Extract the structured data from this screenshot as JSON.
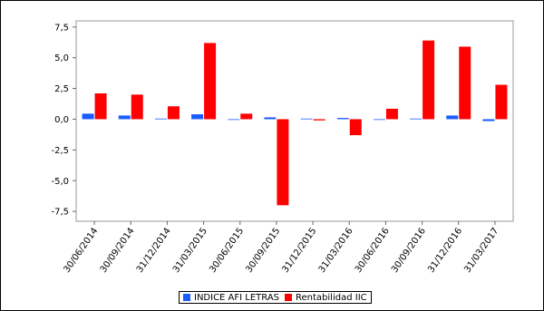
{
  "chart_data": {
    "type": "bar",
    "categories": [
      "30/06/2014",
      "30/09/2014",
      "31/12/2014",
      "31/03/2015",
      "30/06/2015",
      "30/09/2015",
      "31/12/2015",
      "31/03/2016",
      "30/06/2016",
      "30/09/2016",
      "31/12/2016",
      "31/03/2017"
    ],
    "series": [
      {
        "name": "INDICE AFI LETRAS",
        "color": "#1a5cff",
        "values": [
          0.45,
          0.3,
          0.05,
          0.4,
          -0.05,
          0.15,
          0.05,
          0.1,
          0.0,
          0.05,
          0.3,
          -0.15
        ]
      },
      {
        "name": "Rentabilidad IIC",
        "color": "#ff0000",
        "values": [
          2.1,
          2.0,
          1.05,
          6.2,
          0.45,
          -7.0,
          -0.1,
          -1.3,
          0.85,
          6.4,
          5.9,
          2.8
        ]
      }
    ],
    "yticks": [
      "7,5",
      "5,0",
      "2,5",
      "0,0",
      "-2,5",
      "-5,0",
      "-7,5"
    ],
    "ytick_values": [
      7.5,
      5.0,
      2.5,
      0.0,
      -2.5,
      -5.0,
      -7.5
    ],
    "ylim": [
      -8.3,
      8.0
    ],
    "title": "",
    "xlabel": "",
    "ylabel": "",
    "legend_position": "bottom-center",
    "grid": false
  }
}
